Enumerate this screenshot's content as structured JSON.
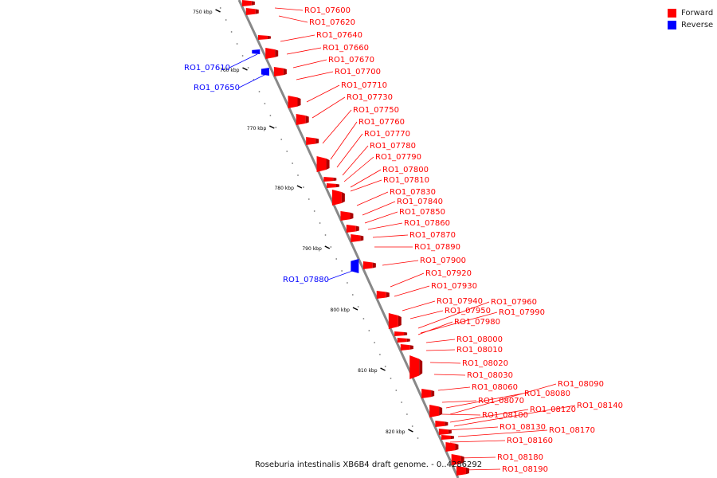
{
  "legend": [
    {
      "label": "Forward",
      "color": "#ff0000"
    },
    {
      "label": "Reverse",
      "color": "#0000ff"
    }
  ],
  "caption": "Roseburia intestinalis XB6B4 draft genome. - 0..4286292",
  "ticks": [
    "750 kbp",
    "760 kbp",
    "770 kbp",
    "780 kbp",
    "790 kbp",
    "800 kbp",
    "810 kbp",
    "820 kbp"
  ],
  "forward_genes": [
    "RO1_07600",
    "RO1_07620",
    "RO1_07640",
    "RO1_07660",
    "RO1_07670",
    "RO1_07700",
    "RO1_07710",
    "RO1_07730",
    "RO1_07750",
    "RO1_07760",
    "RO1_07770",
    "RO1_07780",
    "RO1_07790",
    "RO1_07800",
    "RO1_07810",
    "RO1_07830",
    "RO1_07840",
    "RO1_07850",
    "RO1_07860",
    "RO1_07870",
    "RO1_07890",
    "RO1_07900",
    "RO1_07920",
    "RO1_07930",
    "RO1_07940",
    "RO1_07950",
    "RO1_07960",
    "RO1_07990",
    "RO1_07980",
    "RO1_08000",
    "RO1_08010",
    "RO1_08020",
    "RO1_08030",
    "RO1_08060",
    "RO1_08070",
    "RO1_08080",
    "RO1_08090",
    "RO1_08100",
    "RO1_08120",
    "RO1_08140",
    "RO1_08130",
    "RO1_08170",
    "RO1_08160",
    "RO1_08180",
    "RO1_08190"
  ],
  "reverse_genes": [
    "RO1_07610",
    "RO1_07650",
    "RO1_07880"
  ]
}
